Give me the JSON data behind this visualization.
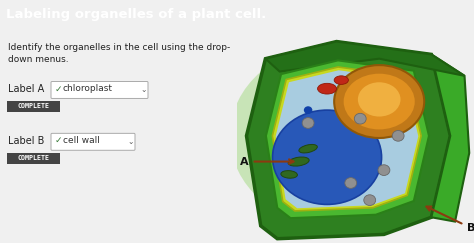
{
  "title": "Labeling organelles of a plant cell.",
  "title_bg": "#595959",
  "title_color": "#ffffff",
  "body_bg": "#f0f0f0",
  "instruction_line1": "Identify the organelles in the cell using the drop-",
  "instruction_line2": "down menus.",
  "label_a_text": "Label A",
  "label_b_text": "Label B",
  "check_color": "#3a7a3a",
  "check_text": "✓",
  "chloroplast_text": "chloroplast",
  "cellwall_text": "cell wall",
  "dropdown_arrow": "∨",
  "badge_text": "COMPLETE",
  "dropdown_border": "#aaaaaa",
  "dropdown_bg": "#ffffff",
  "badge_bg": "#444444",
  "badge_color": "#ffffff",
  "arrow_color": "#8B3A10",
  "cell_outer_bg": "#c8e6b0",
  "cell_wall_dark": "#2d7a1e",
  "cell_wall_med": "#3d9e28",
  "cell_wall_light": "#5ab83c",
  "cell_inner_green": "#4aaa30",
  "cell_yellow": "#d8e030",
  "cytoplasm": "#b0d8e8",
  "vacuole": "#3060b8",
  "nucleus_outer": "#d07010",
  "nucleus_inner": "#e08828",
  "nucleolus": "#f0a030",
  "chloro_green": "#388020",
  "gray_orgs": "#909090",
  "red_org": "#c03020",
  "orange_org": "#e86010"
}
